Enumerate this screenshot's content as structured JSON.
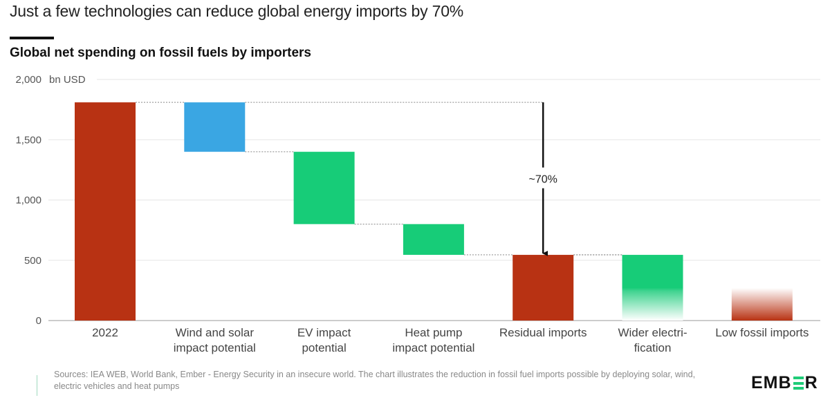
{
  "header": {
    "title": "Just a few technologies can reduce global energy imports by 70%",
    "subtitle": "Global net spending on fossil fuels by importers"
  },
  "chart_data": {
    "type": "waterfall",
    "title": "Global net spending on fossil fuels by importers",
    "ylabel": "bn USD",
    "ylim": [
      0,
      2000
    ],
    "yticks": [
      0,
      500,
      1000,
      1500,
      2000
    ],
    "ytick_labels": [
      "0",
      "500",
      "1,000",
      "1,500",
      "2,000"
    ],
    "grid": true,
    "categories": [
      "2022",
      "Wind and solar impact potential",
      "EV impact potential",
      "Heat pump impact potential",
      "Residual imports",
      "Wider electrification",
      "Low fossil imports"
    ],
    "category_lines": [
      [
        "2022"
      ],
      [
        "Wind and solar",
        "impact potential"
      ],
      [
        "EV impact",
        "potential"
      ],
      [
        "Heat pump",
        "impact potential"
      ],
      [
        "Residual imports"
      ],
      [
        "Wider electri-",
        "fication"
      ],
      [
        "Low fossil imports"
      ]
    ],
    "bars": [
      {
        "name": "2022",
        "start": 0,
        "end": 1810,
        "kind": "total",
        "color": "#b83213"
      },
      {
        "name": "Wind and solar impact potential",
        "start": 1810,
        "end": 1400,
        "kind": "decrease",
        "color": "#3aa6e3"
      },
      {
        "name": "EV impact potential",
        "start": 1400,
        "end": 800,
        "kind": "decrease",
        "color": "#17cc78"
      },
      {
        "name": "Heat pump impact potential",
        "start": 800,
        "end": 545,
        "kind": "decrease",
        "color": "#17cc78"
      },
      {
        "name": "Residual imports",
        "start": 0,
        "end": 545,
        "kind": "total",
        "color": "#b83213"
      },
      {
        "name": "Wider electrification",
        "start": 545,
        "end": 0,
        "kind": "decrease-faded",
        "solid_to": 270,
        "color": "#17cc78"
      },
      {
        "name": "Low fossil imports",
        "start": 0,
        "end": 270,
        "kind": "total-faded",
        "color": "#b83213"
      }
    ],
    "annotation": {
      "label": "~70%",
      "from": 1810,
      "to": 545,
      "category_index": 4
    }
  },
  "footer": {
    "sources": "Sources: IEA WEB, World Bank, Ember - Energy Security in an insecure world. The chart illustrates the reduction in fossil fuel imports possible by deploying solar, wind, electric vehicles and heat pumps",
    "logo_left": "EMB",
    "logo_right": "R"
  }
}
